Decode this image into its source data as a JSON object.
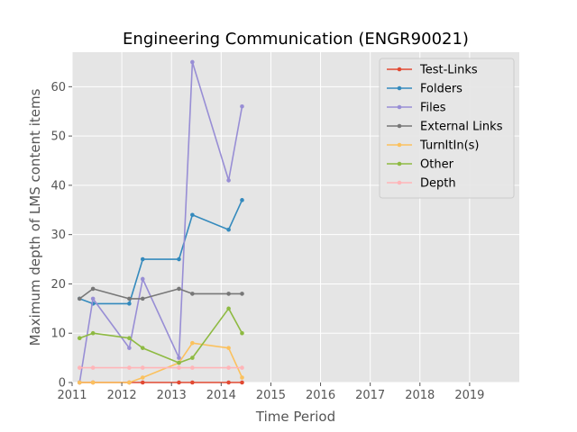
{
  "chart_data": {
    "type": "line",
    "title": "Engineering Communication (ENGR90021)",
    "xlabel": "Time Period",
    "ylabel": "Maximum depth of LMS content items",
    "xlim": [
      2011,
      2020
    ],
    "ylim": [
      0,
      67
    ],
    "x_ticks": [
      2011,
      2012,
      2013,
      2014,
      2015,
      2016,
      2017,
      2018,
      2019
    ],
    "y_ticks": [
      0,
      10,
      20,
      30,
      40,
      50,
      60
    ],
    "grid": true,
    "legend_position": "top-right",
    "x": [
      2011.15,
      2011.42,
      2012.15,
      2012.42,
      2013.15,
      2013.42,
      2014.15,
      2014.42
    ],
    "series": [
      {
        "name": "Test-Links",
        "color": "#E24A33",
        "values": [
          0,
          0,
          0,
          0,
          0,
          0,
          0,
          0
        ]
      },
      {
        "name": "Folders",
        "color": "#348ABD",
        "values": [
          17,
          16,
          16,
          25,
          25,
          34,
          31,
          37
        ]
      },
      {
        "name": "Files",
        "color": "#988ED5",
        "values": [
          0,
          17,
          7,
          21,
          5,
          65,
          41,
          56
        ]
      },
      {
        "name": "External Links",
        "color": "#777777",
        "values": [
          17,
          19,
          17,
          17,
          19,
          18,
          18,
          18
        ]
      },
      {
        "name": "TurnItIn(s)",
        "color": "#FBC15E",
        "values": [
          0,
          0,
          0,
          1,
          4,
          8,
          7,
          1
        ]
      },
      {
        "name": "Other",
        "color": "#8EBA42",
        "values": [
          9,
          10,
          9,
          7,
          4,
          5,
          15,
          10
        ]
      },
      {
        "name": "Depth",
        "color": "#FFB5B8",
        "values": [
          3,
          3,
          3,
          3,
          3,
          3,
          3,
          3
        ]
      }
    ]
  }
}
